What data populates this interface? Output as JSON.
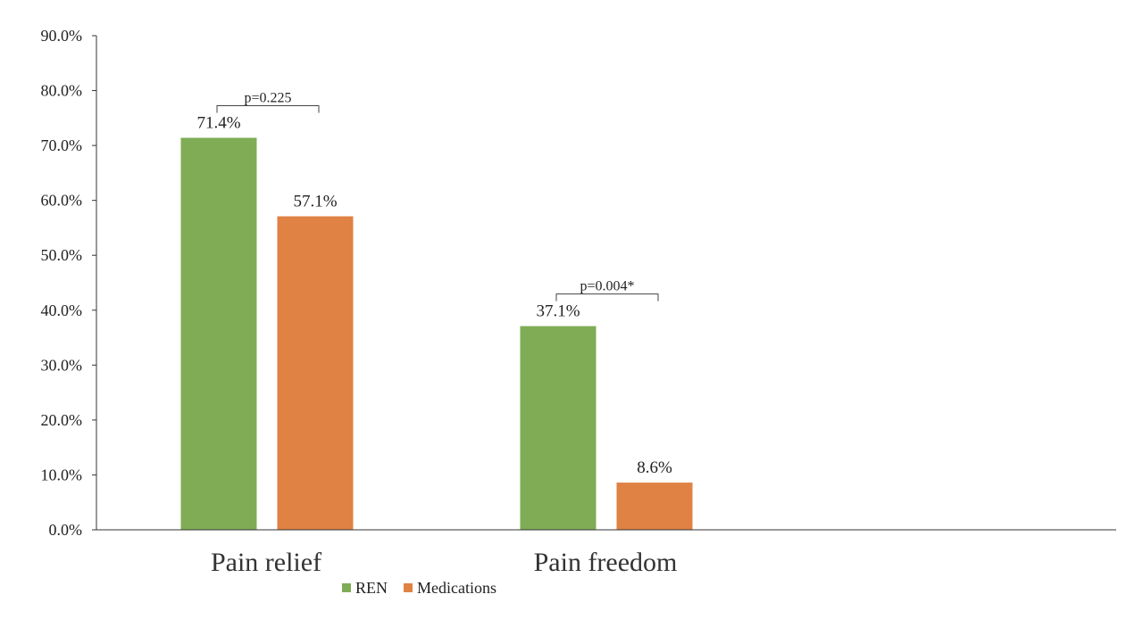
{
  "chart_data": {
    "type": "bar",
    "categories": [
      "Pain relief",
      "Pain freedom"
    ],
    "series": [
      {
        "name": "REN",
        "values": [
          71.4,
          37.1
        ],
        "labels": [
          "71.4%",
          "37.1%"
        ],
        "color": "#7fac55"
      },
      {
        "name": "Medications",
        "values": [
          57.1,
          8.6
        ],
        "labels": [
          "57.1%",
          "8.6%"
        ],
        "color": "#df8244"
      }
    ],
    "y_ticks": [
      "0.0%",
      "10.0%",
      "20.0%",
      "30.0%",
      "40.0%",
      "50.0%",
      "60.0%",
      "70.0%",
      "80.0%",
      "90.0%"
    ],
    "ylim": [
      0,
      90
    ],
    "annotations": [
      {
        "category": "Pain relief",
        "text": "p=0.225"
      },
      {
        "category": "Pain freedom",
        "text": "p=0.004*"
      }
    ],
    "legend_position": "bottom",
    "grid": false
  }
}
